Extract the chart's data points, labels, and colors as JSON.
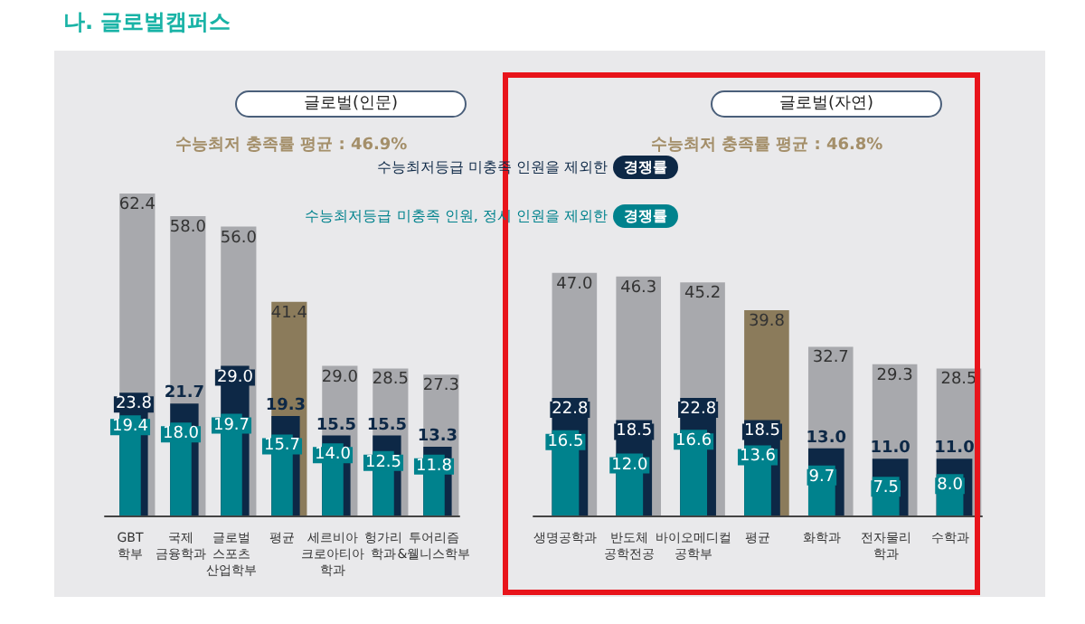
{
  "chart_data": [
    {
      "type": "bar",
      "title": "글로벌(인문)",
      "subtitle": "수능최저 충족률 평균 : 46.9%",
      "annotations": [
        "나. 글로벌캠퍼스"
      ],
      "categories": [
        "GBT\n학부",
        "국제\n금융학과",
        "글로벌\n스포츠\n산업학부",
        "평균",
        "세르비아\n크로아티아\n학과",
        "헝가리\n학과",
        "투어리즘\n&웰니스학부"
      ],
      "series": [
        {
          "color": "#a8a9ad",
          "colors": [
            "#a8a9ad",
            "#a8a9ad",
            "#a8a9ad",
            "#8b7b5b",
            "#a8a9ad",
            "#a8a9ad",
            "#a8a9ad"
          ],
          "values": [
            62.4,
            58.0,
            56.0,
            41.4,
            29.0,
            28.5,
            27.3
          ],
          "value_labels": [
            "62.4",
            "58.0",
            "56.0",
            "41.4",
            "29.0",
            "28.5",
            "27.3"
          ]
        },
        {
          "name": "수능최저등급 미충족 인원을 제외한 경쟁률",
          "color": "#0d2846",
          "values": [
            23.8,
            21.7,
            29.0,
            19.3,
            15.5,
            15.5,
            13.3
          ],
          "value_labels": [
            "23.8",
            "21.7",
            "29.0",
            "19.3",
            "15.5",
            "15.5",
            "13.3"
          ]
        },
        {
          "name": "수능최저등급 미충족 인원, 정시 인원을 제외한 경쟁률",
          "color": "#00828d",
          "values": [
            19.4,
            18.0,
            19.7,
            15.7,
            14.0,
            12.5,
            11.8
          ],
          "value_labels": [
            "19.4",
            "18.0",
            "19.7",
            "15.7",
            "14.0",
            "12.5",
            "11.8"
          ]
        }
      ],
      "legend": "top right",
      "tick_labels": "x"
    },
    {
      "type": "bar",
      "title": "글로벌(자연)",
      "subtitle": "수능최저 충족률 평균 : 46.8%",
      "categories": [
        "생명공학과",
        "반도체\n공학전공",
        "바이오메디컬\n공학부",
        "평균",
        "화학과",
        "전자물리\n학과",
        "수학과"
      ],
      "series": [
        {
          "color": "#a8a9ad",
          "colors": [
            "#a8a9ad",
            "#a8a9ad",
            "#a8a9ad",
            "#8b7b5b",
            "#a8a9ad",
            "#a8a9ad",
            "#a8a9ad"
          ],
          "values": [
            47.0,
            46.3,
            45.2,
            39.8,
            32.7,
            29.3,
            28.5
          ],
          "value_labels": [
            "47.0",
            "46.3",
            "45.2",
            "39.8",
            "32.7",
            "29.3",
            "28.5"
          ]
        },
        {
          "color": "#0d2846",
          "values": [
            22.8,
            18.5,
            22.8,
            18.5,
            13.0,
            11.0,
            11.0
          ],
          "value_labels": [
            "22.8",
            "18.5",
            "22.8",
            "18.5",
            "13.0",
            "11.0",
            "11.0"
          ]
        },
        {
          "color": "#00828d",
          "values": [
            16.5,
            12.0,
            16.6,
            13.6,
            9.7,
            7.5,
            8.0
          ],
          "value_labels": [
            "16.5",
            "12.0",
            "16.6",
            "13.6",
            "9.7",
            "7.5",
            "8.0"
          ]
        }
      ],
      "tick_labels": "x"
    }
  ]
}
